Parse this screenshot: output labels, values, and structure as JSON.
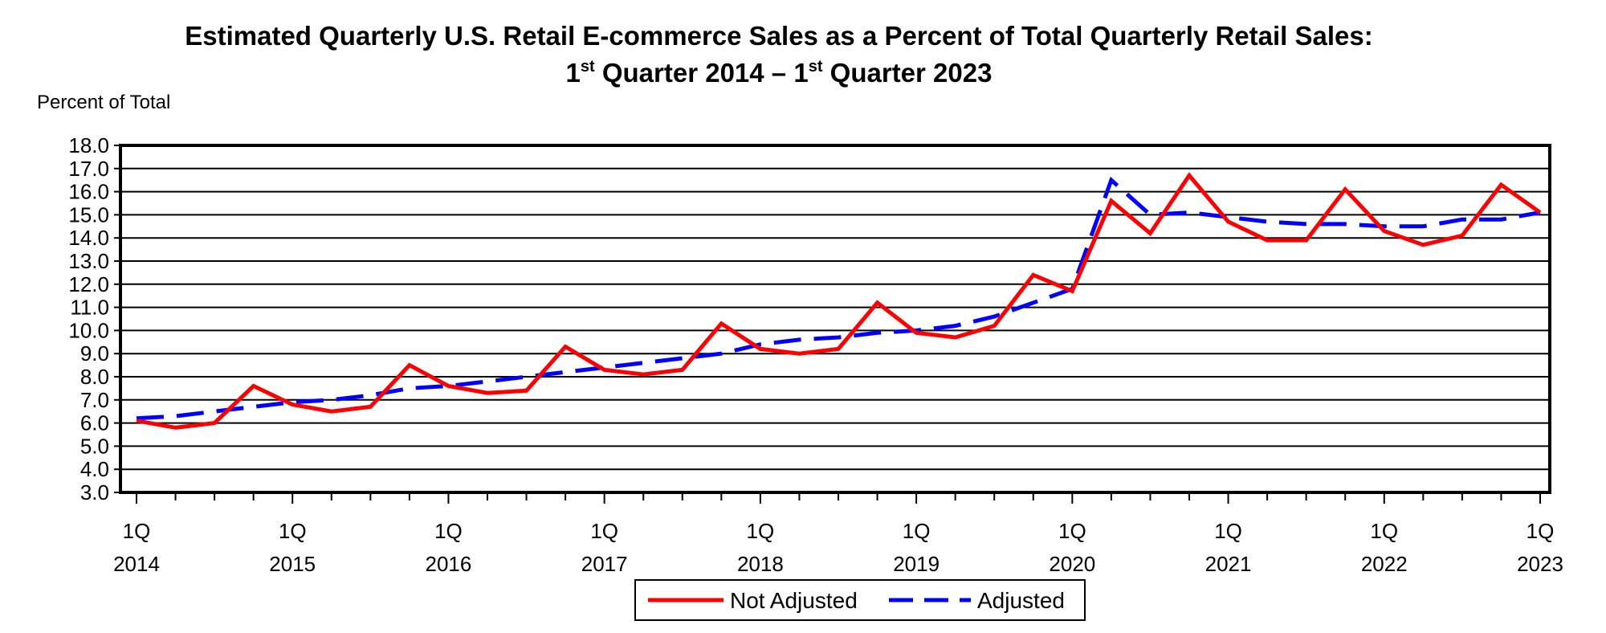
{
  "chart_data": {
    "type": "line",
    "title_line1": "Estimated Quarterly U.S. Retail E-commerce Sales as a Percent of Total Quarterly Retail Sales:",
    "title_line2": {
      "q1": "1",
      "sup1": "st",
      "mid": " Quarter 2014 – ",
      "q2": "1",
      "sup2": "st",
      "end": " Quarter 2023"
    },
    "ylabel": "Percent of Total",
    "xlabel": "",
    "ylim": [
      3.0,
      18.0
    ],
    "y_ticks": [
      "3.0",
      "4.0",
      "5.0",
      "6.0",
      "7.0",
      "8.0",
      "9.0",
      "10.0",
      "11.0",
      "12.0",
      "13.0",
      "14.0",
      "15.0",
      "16.0",
      "17.0",
      "18.0"
    ],
    "grid": true,
    "x_tick_labels": [
      {
        "quarter": "1Q",
        "year": "2014"
      },
      {
        "quarter": "1Q",
        "year": "2015"
      },
      {
        "quarter": "1Q",
        "year": "2016"
      },
      {
        "quarter": "1Q",
        "year": "2017"
      },
      {
        "quarter": "1Q",
        "year": "2018"
      },
      {
        "quarter": "1Q",
        "year": "2019"
      },
      {
        "quarter": "1Q",
        "year": "2020"
      },
      {
        "quarter": "1Q",
        "year": "2021"
      },
      {
        "quarter": "1Q",
        "year": "2022"
      },
      {
        "quarter": "1Q",
        "year": "2023"
      }
    ],
    "num_quarters": 37,
    "legend_placement": "bottom-center",
    "series": [
      {
        "name": "Not Adjusted",
        "color": "#ff0000",
        "style": "solid",
        "values": [
          6.1,
          5.8,
          6.0,
          7.6,
          6.8,
          6.5,
          6.7,
          8.5,
          7.6,
          7.3,
          7.4,
          9.3,
          8.3,
          8.1,
          8.3,
          10.3,
          9.2,
          9.0,
          9.2,
          11.2,
          9.9,
          9.7,
          10.2,
          12.4,
          11.7,
          15.6,
          14.2,
          16.7,
          14.7,
          13.9,
          13.9,
          16.1,
          14.3,
          13.7,
          14.1,
          16.3,
          15.1
        ]
      },
      {
        "name": "Adjusted",
        "color": "#0000ff",
        "style": "dashed",
        "values": [
          6.2,
          6.3,
          6.5,
          6.7,
          6.9,
          7.0,
          7.2,
          7.5,
          7.6,
          7.8,
          8.0,
          8.2,
          8.4,
          8.6,
          8.8,
          9.0,
          9.4,
          9.6,
          9.7,
          9.9,
          10.0,
          10.2,
          10.6,
          11.2,
          11.8,
          16.5,
          15.0,
          15.1,
          14.9,
          14.7,
          14.6,
          14.6,
          14.5,
          14.5,
          14.8,
          14.8,
          15.1
        ]
      }
    ]
  }
}
